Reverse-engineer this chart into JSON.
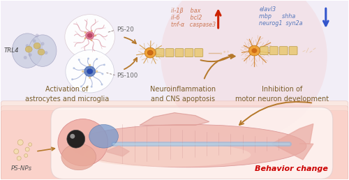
{
  "bg_top_color": "#e8dff0",
  "bg_bottom_gradient_top": "#f5c0c0",
  "bg_bottom_color": "#fae8e0",
  "label_trl4": "TRL4",
  "label_ps20": "PS-20",
  "label_ps100": "PS-100",
  "label_psnps": "PS-NPs",
  "label_box1": "Activation of\nastrocytes and microglia",
  "label_box2": "Neuroinflammation\nand CNS apoptosis",
  "label_box3": "Inhibition of\nmotor neuron development",
  "label_behavior": "Behavior change",
  "arrow_color": "#b5782a",
  "up_arrow_color": "#cc2200",
  "down_arrow_color": "#3355cc",
  "text_color_genes_up": "#cc7755",
  "text_color_genes_down": "#5577bb",
  "behavior_color": "#cc0000",
  "label_fontsize": 7.0,
  "gene_fontsize": 5.8,
  "sublabel_fontsize": 6.2,
  "section_label_color": "#7a5c28"
}
